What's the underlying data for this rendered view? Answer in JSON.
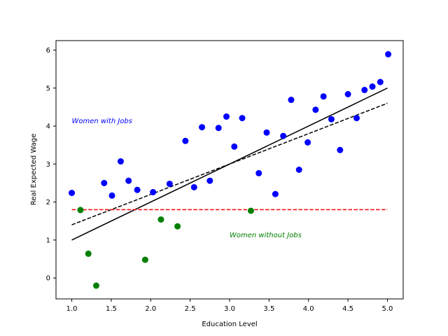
{
  "chart_data": {
    "type": "scatter",
    "title": "",
    "xlabel": "Education Level",
    "ylabel": "Real Expected Wage",
    "xlim": [
      0.8,
      5.2
    ],
    "ylim": [
      -0.55,
      6.25
    ],
    "xticks": [
      "1.0",
      "1.5",
      "2.0",
      "2.5",
      "3.0",
      "3.5",
      "4.0",
      "4.5",
      "5.0"
    ],
    "yticks": [
      "0",
      "1",
      "2",
      "3",
      "4",
      "5",
      "6"
    ],
    "grid": false,
    "series": [
      {
        "kind": "points",
        "color": "#0000ff",
        "points": [
          [
            1.0,
            2.24
          ],
          [
            1.41,
            2.5
          ],
          [
            1.51,
            2.17
          ],
          [
            1.62,
            3.07
          ],
          [
            1.72,
            2.56
          ],
          [
            1.83,
            2.32
          ],
          [
            2.03,
            2.26
          ],
          [
            2.24,
            2.48
          ],
          [
            2.44,
            3.61
          ],
          [
            2.55,
            2.39
          ],
          [
            2.65,
            3.97
          ],
          [
            2.75,
            2.56
          ],
          [
            2.86,
            3.95
          ],
          [
            2.96,
            4.25
          ],
          [
            3.06,
            3.46
          ],
          [
            3.16,
            4.21
          ],
          [
            3.37,
            2.76
          ],
          [
            3.47,
            3.83
          ],
          [
            3.58,
            2.21
          ],
          [
            3.68,
            3.74
          ],
          [
            3.78,
            4.69
          ],
          [
            3.88,
            2.85
          ],
          [
            3.99,
            3.57
          ],
          [
            4.09,
            4.43
          ],
          [
            4.19,
            4.78
          ],
          [
            4.29,
            4.18
          ],
          [
            4.4,
            3.37
          ],
          [
            4.5,
            4.84
          ],
          [
            4.61,
            4.21
          ],
          [
            4.71,
            4.95
          ],
          [
            4.81,
            5.04
          ],
          [
            4.91,
            5.16
          ],
          [
            5.01,
            5.89
          ]
        ]
      },
      {
        "kind": "points",
        "color": "#008000",
        "points": [
          [
            1.11,
            1.79
          ],
          [
            1.21,
            0.64
          ],
          [
            1.31,
            -0.2
          ],
          [
            1.93,
            0.48
          ],
          [
            2.13,
            1.54
          ],
          [
            2.34,
            1.36
          ],
          [
            3.27,
            1.77
          ]
        ]
      },
      {
        "kind": "line",
        "color": "#000000",
        "dash": "solid",
        "points": [
          [
            1.0,
            1.0
          ],
          [
            5.0,
            5.0
          ]
        ]
      },
      {
        "kind": "line",
        "color": "#000000",
        "dash": "dashed",
        "points": [
          [
            1.0,
            1.4
          ],
          [
            5.0,
            4.6
          ]
        ]
      },
      {
        "kind": "line",
        "color": "#ff0000",
        "dash": "dashed",
        "points": [
          [
            1.0,
            1.8
          ],
          [
            5.0,
            1.8
          ]
        ]
      }
    ],
    "annotations": [
      {
        "text": "Women with Jobs",
        "x": 1.0,
        "y": 4.02,
        "color": "#0000ff"
      },
      {
        "text": "Women without Jobs",
        "x": 3.0,
        "y": 1.02,
        "color": "#008000"
      }
    ]
  }
}
